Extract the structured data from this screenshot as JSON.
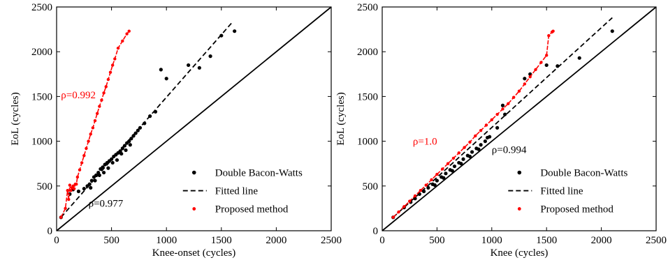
{
  "chart_data": [
    {
      "type": "scatter",
      "xlabel": "Knee-onset (cycles)",
      "ylabel": "EoL (cycles)",
      "xlim": [
        0,
        2500
      ],
      "ylim": [
        0,
        2500
      ],
      "xticks": [
        0,
        500,
        1000,
        1500,
        2000,
        2500
      ],
      "yticks": [
        0,
        500,
        1000,
        1500,
        2000,
        2500
      ],
      "grid": false,
      "legend_position": "bottom-right",
      "legend": [
        "Double Bacon-Watts",
        "Fitted line",
        "Proposed method"
      ],
      "reference_line": {
        "x": [
          0,
          2500
        ],
        "y": [
          0,
          2500
        ],
        "color": "#000000"
      },
      "series": [
        {
          "name": "Double Bacon-Watts",
          "kind": "points",
          "color": "#000000",
          "points": [
            [
              40,
              150
            ],
            [
              120,
              410
            ],
            [
              150,
              460
            ],
            [
              200,
              440
            ],
            [
              250,
              470
            ],
            [
              280,
              500
            ],
            [
              300,
              520
            ],
            [
              320,
              560
            ],
            [
              340,
              600
            ],
            [
              360,
              620
            ],
            [
              380,
              650
            ],
            [
              400,
              690
            ],
            [
              420,
              710
            ],
            [
              440,
              740
            ],
            [
              460,
              760
            ],
            [
              480,
              780
            ],
            [
              500,
              800
            ],
            [
              520,
              830
            ],
            [
              540,
              850
            ],
            [
              560,
              870
            ],
            [
              580,
              890
            ],
            [
              600,
              920
            ],
            [
              620,
              950
            ],
            [
              640,
              980
            ],
            [
              660,
              1000
            ],
            [
              680,
              1030
            ],
            [
              700,
              1060
            ],
            [
              720,
              1090
            ],
            [
              740,
              1120
            ],
            [
              760,
              1150
            ],
            [
              800,
              1200
            ],
            [
              850,
              1280
            ],
            [
              900,
              1330
            ],
            [
              950,
              1800
            ],
            [
              1000,
              1700
            ],
            [
              1200,
              1850
            ],
            [
              1300,
              1820
            ],
            [
              1400,
              1950
            ],
            [
              1500,
              2180
            ],
            [
              1620,
              2230
            ],
            [
              350,
              560
            ],
            [
              430,
              650
            ],
            [
              510,
              760
            ],
            [
              590,
              860
            ],
            [
              670,
              960
            ],
            [
              310,
              480
            ],
            [
              390,
              620
            ],
            [
              470,
              700
            ],
            [
              550,
              790
            ],
            [
              630,
              900
            ]
          ]
        },
        {
          "name": "Fitted line",
          "kind": "dashed-line",
          "color": "#000000",
          "x": [
            40,
            1600
          ],
          "y": [
            150,
            2330
          ]
        },
        {
          "name": "Proposed method",
          "kind": "points",
          "color": "#ff0000",
          "points": [
            [
              40,
              150
            ],
            [
              80,
              250
            ],
            [
              110,
              350
            ],
            [
              130,
              450
            ],
            [
              150,
              500
            ],
            [
              170,
              520
            ],
            [
              190,
              600
            ],
            [
              210,
              680
            ],
            [
              230,
              760
            ],
            [
              250,
              840
            ],
            [
              270,
              920
            ],
            [
              290,
              1000
            ],
            [
              310,
              1080
            ],
            [
              330,
              1150
            ],
            [
              350,
              1230
            ],
            [
              370,
              1310
            ],
            [
              390,
              1390
            ],
            [
              410,
              1460
            ],
            [
              430,
              1540
            ],
            [
              450,
              1610
            ],
            [
              470,
              1690
            ],
            [
              490,
              1770
            ],
            [
              510,
              1850
            ],
            [
              530,
              1920
            ],
            [
              560,
              2040
            ],
            [
              600,
              2120
            ],
            [
              640,
              2200
            ],
            [
              660,
              2230
            ],
            [
              100,
              450
            ],
            [
              120,
              510
            ],
            [
              140,
              480
            ],
            [
              160,
              470
            ],
            [
              180,
              520
            ]
          ]
        }
      ],
      "annotations": [
        {
          "text": "ρ=0.992",
          "x": 40,
          "y": 1480,
          "color": "#ff0000"
        },
        {
          "text": "ρ=0.977",
          "x": 290,
          "y": 270,
          "color": "#000000"
        }
      ]
    },
    {
      "type": "scatter",
      "xlabel": "Knee (cycles)",
      "ylabel": "EoL (cycles)",
      "xlim": [
        0,
        2500
      ],
      "ylim": [
        0,
        2500
      ],
      "xticks": [
        0,
        500,
        1000,
        1500,
        2000,
        2500
      ],
      "yticks": [
        0,
        500,
        1000,
        1500,
        2000,
        2500
      ],
      "grid": false,
      "legend_position": "bottom-right",
      "legend": [
        "Double Bacon-Watts",
        "Fitted line",
        "Proposed method"
      ],
      "reference_line": {
        "x": [
          0,
          2500
        ],
        "y": [
          0,
          2500
        ],
        "color": "#000000"
      },
      "series": [
        {
          "name": "Double Bacon-Watts",
          "kind": "points",
          "color": "#000000",
          "points": [
            [
              100,
              150
            ],
            [
              200,
              260
            ],
            [
              260,
              320
            ],
            [
              300,
              360
            ],
            [
              340,
              410
            ],
            [
              380,
              440
            ],
            [
              420,
              480
            ],
            [
              460,
              520
            ],
            [
              500,
              560
            ],
            [
              540,
              600
            ],
            [
              580,
              640
            ],
            [
              620,
              680
            ],
            [
              660,
              720
            ],
            [
              700,
              760
            ],
            [
              740,
              800
            ],
            [
              780,
              840
            ],
            [
              820,
              880
            ],
            [
              860,
              920
            ],
            [
              900,
              960
            ],
            [
              940,
              1000
            ],
            [
              980,
              1050
            ],
            [
              1050,
              1150
            ],
            [
              1100,
              1400
            ],
            [
              1300,
              1700
            ],
            [
              1350,
              1750
            ],
            [
              1500,
              1850
            ],
            [
              1600,
              1840
            ],
            [
              1800,
              1930
            ],
            [
              2100,
              2230
            ],
            [
              480,
              510
            ],
            [
              560,
              590
            ],
            [
              640,
              670
            ],
            [
              720,
              750
            ],
            [
              800,
              830
            ],
            [
              880,
              910
            ],
            [
              960,
              1040
            ],
            [
              1120,
              1300
            ]
          ]
        },
        {
          "name": "Fitted line",
          "kind": "dashed-line",
          "color": "#000000",
          "x": [
            100,
            2100
          ],
          "y": [
            150,
            2380
          ]
        },
        {
          "name": "Proposed method",
          "kind": "points",
          "color": "#ff0000",
          "points": [
            [
              100,
              150
            ],
            [
              150,
              210
            ],
            [
              200,
              270
            ],
            [
              250,
              330
            ],
            [
              300,
              390
            ],
            [
              350,
              450
            ],
            [
              400,
              510
            ],
            [
              450,
              570
            ],
            [
              500,
              630
            ],
            [
              550,
              690
            ],
            [
              600,
              750
            ],
            [
              650,
              810
            ],
            [
              700,
              870
            ],
            [
              750,
              930
            ],
            [
              800,
              990
            ],
            [
              850,
              1060
            ],
            [
              900,
              1120
            ],
            [
              950,
              1180
            ],
            [
              1000,
              1240
            ],
            [
              1050,
              1300
            ],
            [
              1100,
              1360
            ],
            [
              1150,
              1420
            ],
            [
              1200,
              1490
            ],
            [
              1250,
              1560
            ],
            [
              1300,
              1640
            ],
            [
              1350,
              1720
            ],
            [
              1400,
              1800
            ],
            [
              1450,
              1880
            ],
            [
              1500,
              1960
            ],
            [
              1550,
              2220
            ],
            [
              1560,
              2230
            ],
            [
              1520,
              2180
            ]
          ]
        }
      ],
      "annotations": [
        {
          "text": "ρ=1.0",
          "x": 280,
          "y": 960,
          "color": "#ff0000"
        },
        {
          "text": "ρ=0.994",
          "x": 1000,
          "y": 870,
          "color": "#000000"
        }
      ]
    }
  ]
}
